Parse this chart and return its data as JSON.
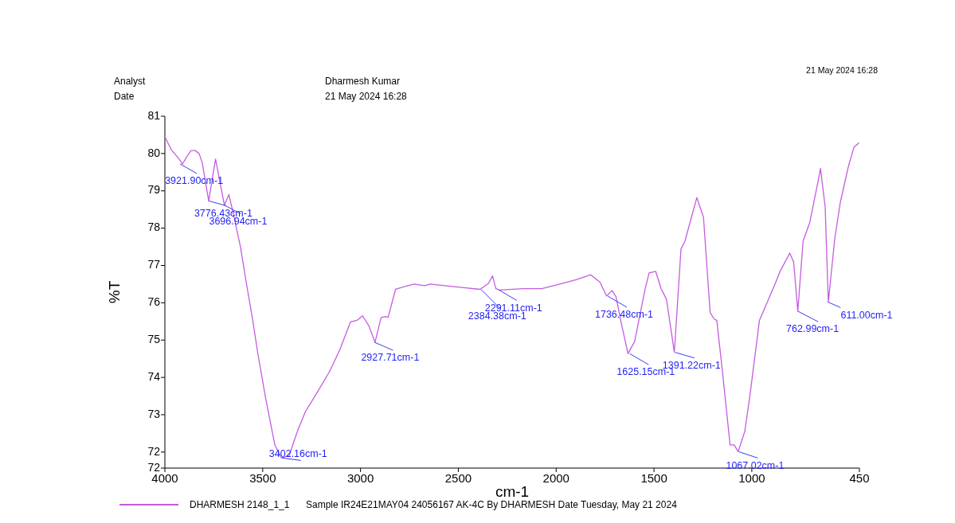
{
  "chart_data": {
    "type": "line",
    "xlabel": "cm-1",
    "ylabel": "%T",
    "xlim": [
      4000,
      450
    ],
    "ylim": [
      71.57,
      81
    ],
    "xticks": [
      4000,
      3500,
      3000,
      2500,
      2000,
      1500,
      1000,
      450
    ],
    "yticks": [
      {
        "value": 71.57,
        "label": "72"
      },
      72,
      73,
      74,
      75,
      76,
      77,
      78,
      79,
      80,
      81
    ],
    "grid": false,
    "legend": "bottom",
    "marker": "none",
    "line_style": "solid",
    "x": [
      4000,
      3967,
      3927,
      3910,
      3886,
      3866,
      3845,
      3825,
      3809,
      3776,
      3741,
      3696,
      3673,
      3655,
      3614,
      3581,
      3553,
      3526,
      3486,
      3438,
      3404,
      3364,
      3323,
      3282,
      3228,
      3160,
      3106,
      3051,
      3018,
      2990,
      2957,
      2926,
      2895,
      2875,
      2859,
      2821,
      2766,
      2726,
      2672,
      2644,
      2481,
      2389,
      2346,
      2325,
      2308,
      2291,
      2169,
      2074,
      1966,
      1898,
      1823,
      1776,
      1742,
      1715,
      1694,
      1667,
      1633,
      1599,
      1545,
      1525,
      1491,
      1464,
      1436,
      1396,
      1362,
      1342,
      1281,
      1247,
      1213,
      1192,
      1179,
      1152,
      1111,
      1090,
      1070,
      1036,
      1009,
      961,
      880,
      853,
      806,
      786,
      765,
      738,
      704,
      663,
      649,
      625,
      609,
      576,
      548,
      507,
      478,
      454
    ],
    "series": [
      {
        "name": "DHARMESH 2148_1_1",
        "color": "#c45ce0",
        "values": [
          80.45,
          80.1,
          79.85,
          79.72,
          79.93,
          80.08,
          80.08,
          80.0,
          79.75,
          78.73,
          79.85,
          78.62,
          78.9,
          78.5,
          77.51,
          76.45,
          75.6,
          74.68,
          73.47,
          72.19,
          71.84,
          71.91,
          72.55,
          73.08,
          73.54,
          74.14,
          74.74,
          75.49,
          75.53,
          75.65,
          75.38,
          74.94,
          75.6,
          75.63,
          75.61,
          76.36,
          76.45,
          76.5,
          76.46,
          76.5,
          76.41,
          76.36,
          76.52,
          76.72,
          76.38,
          76.34,
          76.38,
          76.38,
          76.52,
          76.62,
          76.75,
          76.55,
          76.18,
          76.33,
          76.16,
          75.45,
          74.64,
          74.96,
          76.38,
          76.8,
          76.84,
          76.38,
          76.09,
          74.67,
          77.44,
          77.65,
          78.82,
          78.29,
          75.74,
          75.56,
          75.53,
          74.25,
          72.19,
          72.19,
          72.01,
          72.55,
          73.54,
          75.53,
          76.52,
          76.87,
          77.33,
          77.09,
          75.77,
          77.65,
          78.15,
          79.21,
          79.6,
          78.57,
          76.02,
          77.72,
          78.68,
          79.64,
          80.17,
          80.28
        ]
      }
    ],
    "annotations": [
      "Analyst",
      "Date",
      "Dharmesh Kumar",
      "21 May 2024 16:28",
      "21 May 2024 16:28",
      "Sample IR24E21MAY04 24056167 AK-4C By DHARMESH Date Tuesday, May 21 2024",
      {
        "text": "3921.90cm-1",
        "x": 3921.9,
        "y": 79.72
      },
      {
        "text": "3776.43cm-1",
        "x": 3776.43,
        "y": 78.73
      },
      {
        "text": "3696.94cm-1",
        "x": 3696.94,
        "y": 78.62
      },
      {
        "text": "3402.16cm-1",
        "x": 3402.16,
        "y": 71.84
      },
      {
        "text": "2927.71cm-1",
        "x": 2927.71,
        "y": 74.94
      },
      {
        "text": "2384.38cm-1",
        "x": 2384.38,
        "y": 76.36
      },
      {
        "text": "2291.11cm-1",
        "x": 2291.11,
        "y": 76.34
      },
      {
        "text": "1736.48cm-1",
        "x": 1736.48,
        "y": 76.18
      },
      {
        "text": "1625.15cm-1",
        "x": 1625.15,
        "y": 74.64
      },
      {
        "text": "1391.22cm-1",
        "x": 1391.22,
        "y": 74.67
      },
      {
        "text": "1067.02cm-1",
        "x": 1067.02,
        "y": 72.01
      },
      {
        "text": "762.99cm-1",
        "x": 762.99,
        "y": 75.77
      },
      {
        "text": "611.00cm-1",
        "x": 611.0,
        "y": 76.02
      }
    ]
  }
}
